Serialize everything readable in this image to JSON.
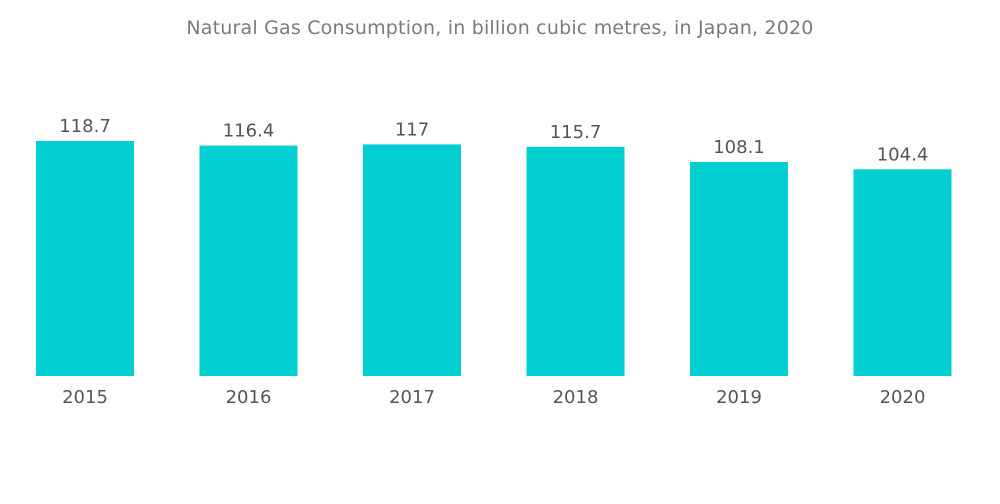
{
  "chart_data": {
    "type": "bar",
    "title": "Natural Gas Consumption, in billion cubic metres, in Japan, 2020",
    "categories": [
      "2015",
      "2016",
      "2017",
      "2018",
      "2019",
      "2020"
    ],
    "values": [
      118.7,
      116.4,
      117,
      115.7,
      108.1,
      104.4
    ],
    "value_labels": [
      "118.7",
      "116.4",
      "117",
      "115.7",
      "108.1",
      "104.4"
    ],
    "xlabel": "",
    "ylabel": "",
    "ylim": [
      0,
      118.7
    ],
    "grid": false,
    "legend": "none",
    "bar_color": "#00CED1"
  }
}
